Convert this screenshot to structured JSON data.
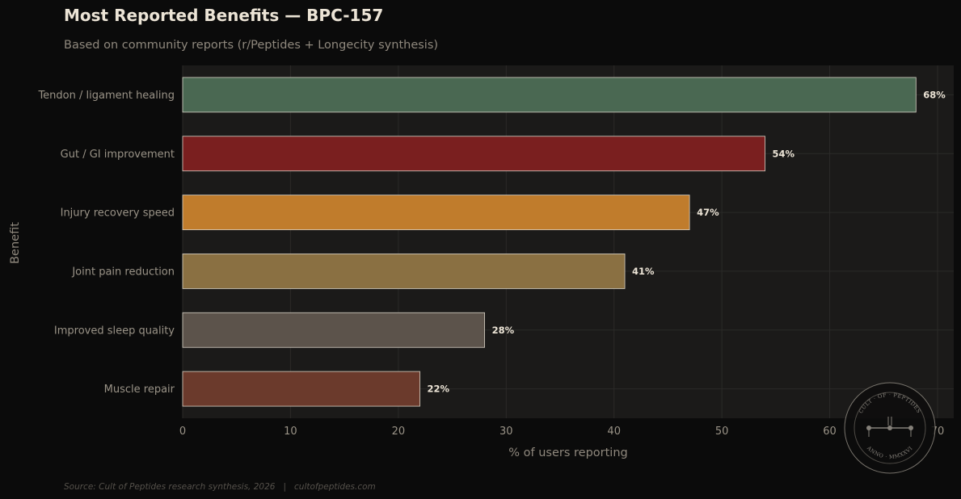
{
  "header": {
    "title": "Most Reported Benefits — BPC-157",
    "subtitle": "Based on community reports (r/Peptides + Longecity synthesis)"
  },
  "footer": {
    "source": "Source: Cult of Peptides research synthesis, 2026   |   cultofpeptides.com"
  },
  "seal": {
    "top_text": "CULT · OF · PEPTIDES",
    "bottom_text": "ANNO · MMXXVI"
  },
  "colors": {
    "background": "#0b0b0b",
    "plot_background": "#1b1a19",
    "grid": "#2b2a28",
    "bar_edge": "#d8d2c6"
  },
  "chart_data": {
    "type": "bar",
    "orientation": "horizontal",
    "title": "Most Reported Benefits — BPC-157",
    "subtitle": "Based on community reports (r/Peptides + Longecity synthesis)",
    "xlabel": "% of users reporting",
    "ylabel": "Benefit",
    "categories": [
      "Tendon / ligament healing",
      "Gut / GI improvement",
      "Injury recovery speed",
      "Joint pain reduction",
      "Improved sleep quality",
      "Muscle repair"
    ],
    "values": [
      68,
      54,
      47,
      41,
      28,
      22
    ],
    "value_labels": [
      "68%",
      "54%",
      "47%",
      "41%",
      "28%",
      "22%"
    ],
    "bar_colors": [
      "#4a6852",
      "#7a1f1f",
      "#c07c2c",
      "#8a7042",
      "#5c534b",
      "#6b3a2c"
    ],
    "xlim": [
      0,
      71.5
    ],
    "xticks": [
      0,
      10,
      20,
      30,
      40,
      50,
      60,
      70
    ],
    "xtick_labels": [
      "0",
      "10",
      "20",
      "30",
      "40",
      "50",
      "60",
      "70"
    ],
    "grid": true,
    "legend": "none"
  }
}
